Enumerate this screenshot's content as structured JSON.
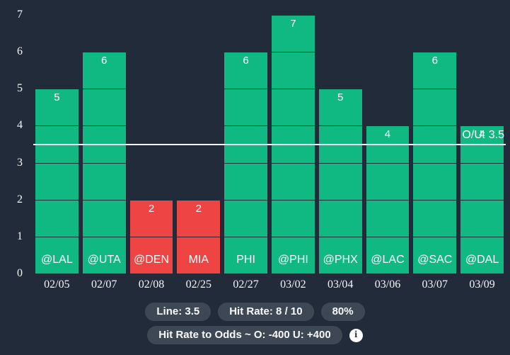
{
  "chart_data": {
    "type": "bar",
    "title": "",
    "categories": [
      "02/05",
      "02/07",
      "02/08",
      "02/25",
      "02/27",
      "03/02",
      "03/04",
      "03/06",
      "03/07",
      "03/09"
    ],
    "values": [
      5,
      6,
      2,
      2,
      6,
      7,
      5,
      4,
      6,
      4
    ],
    "bar_labels": [
      "@LAL",
      "@UTA",
      "@DEN",
      "MIA",
      "PHI",
      "@PHI",
      "@PHX",
      "@LAC",
      "@SAC",
      "@DAL"
    ],
    "bar_results": [
      "over",
      "over",
      "under",
      "under",
      "over",
      "over",
      "over",
      "over",
      "over",
      "over"
    ],
    "xlabel": "",
    "ylabel": "",
    "ylim": [
      0,
      7
    ],
    "yticks": [
      0,
      1,
      2,
      3,
      4,
      5,
      6,
      7
    ],
    "gridlines": {
      "horizontal": true,
      "at": [
        1,
        2,
        3,
        4,
        5,
        6,
        7
      ],
      "drawn_over_bars": true
    },
    "legend": "none",
    "threshold": {
      "value": 3.5,
      "label": "O/U: 3.5"
    }
  },
  "footer": {
    "line": "Line: 3.5",
    "hit_rate": "Hit Rate: 8 / 10",
    "percent": "80%",
    "odds": "Hit Rate to Odds ~ O: -400 U: +400",
    "info_glyph": "i"
  },
  "colors": {
    "background": "#212B3A",
    "over_bar": "#10B981",
    "under_bar": "#EF4444",
    "threshold_line": "#F1F2F3",
    "gridline": "#212B3A",
    "pill_bg": "#3E4855",
    "text": "#FFFFFF"
  }
}
